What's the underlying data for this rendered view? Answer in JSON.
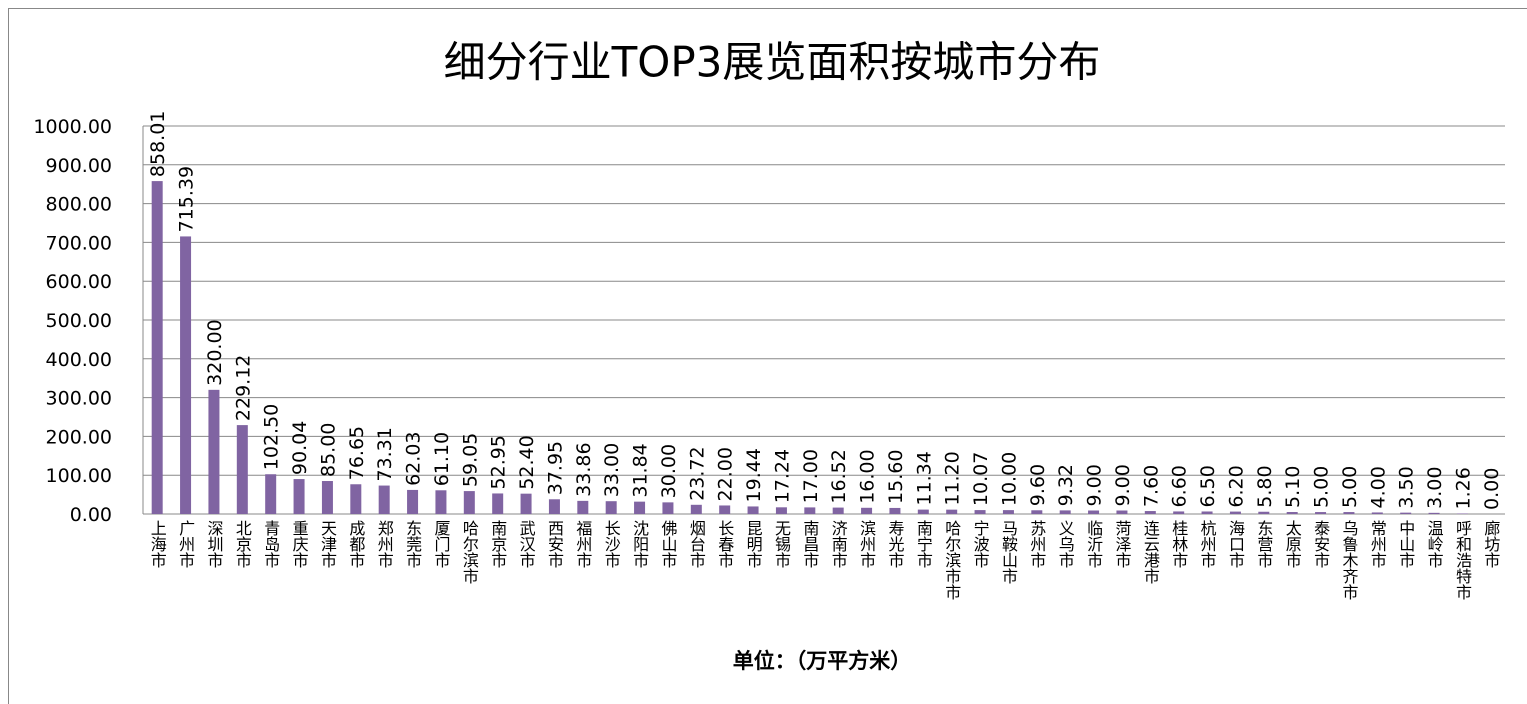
{
  "chart_data": {
    "type": "bar",
    "title": "细分行业TOP3展览面积按城市分布",
    "x_label": "单位：（万平方米）",
    "categories": [
      "上海市",
      "广州市",
      "深圳市",
      "北京市",
      "青岛市",
      "重庆市",
      "天津市",
      "成都市",
      "郑州市",
      "东莞市",
      "厦门市",
      "哈尔滨市",
      "南京市",
      "武汉市",
      "西安市",
      "福州市",
      "长沙市",
      "沈阳市",
      "佛山市",
      "烟台市",
      "长春市",
      "昆明市",
      "无锡市",
      "南昌市",
      "济南市",
      "滨州市",
      "寿光市",
      "南宁市",
      "哈尔滨市市",
      "宁波市",
      "马鞍山市",
      "苏州市",
      "义乌市",
      "临沂市",
      "菏泽市",
      "连云港市",
      "桂林市",
      "杭州市",
      "海口市",
      "东营市",
      "太原市",
      "泰安市",
      "乌鲁木齐市",
      "常州市",
      "中山市",
      "温岭市",
      "呼和浩特市",
      "廊坊市"
    ],
    "values": [
      858.01,
      715.39,
      320.0,
      229.12,
      102.5,
      90.04,
      85.0,
      76.65,
      73.31,
      62.03,
      61.1,
      59.05,
      52.95,
      52.4,
      37.95,
      33.86,
      33.0,
      31.84,
      30.0,
      23.72,
      22.0,
      19.44,
      17.24,
      17.0,
      16.52,
      16.0,
      15.6,
      11.34,
      11.2,
      10.07,
      10.0,
      9.6,
      9.32,
      9.0,
      9.0,
      7.6,
      6.6,
      6.5,
      6.2,
      5.8,
      5.1,
      5.0,
      5.0,
      4.0,
      3.5,
      3.0,
      1.26,
      0.0
    ],
    "value_labels": [
      "858.01",
      "715.39",
      "320.00",
      "229.12",
      "102.50",
      "90.04",
      "85.00",
      "76.65",
      "73.31",
      "62.03",
      "61.10",
      "59.05",
      "52.95",
      "52.40",
      "37.95",
      "33.86",
      "33.00",
      "31.84",
      "30.00",
      "23.72",
      "22.00",
      "19.44",
      "17.24",
      "17.00",
      "16.52",
      "16.00",
      "15.60",
      "11.34",
      "11.20",
      "10.07",
      "10.00",
      "9.60",
      "9.32",
      "9.00",
      "9.00",
      "7.60",
      "6.60",
      "6.50",
      "6.20",
      "5.80",
      "5.10",
      "5.00",
      "5.00",
      "4.00",
      "3.50",
      "3.00",
      "1.26",
      "0.00"
    ],
    "color": "#8064a2",
    "ylim": [
      0,
      1000
    ],
    "yticks": [
      {
        "value": 0,
        "label": "0.00"
      },
      {
        "value": 100,
        "label": "100.00"
      },
      {
        "value": 200,
        "label": "200.00"
      },
      {
        "value": 300,
        "label": "300.00"
      },
      {
        "value": 400,
        "label": "400.00"
      },
      {
        "value": 500,
        "label": "500.00"
      },
      {
        "value": 600,
        "label": "600.00"
      },
      {
        "value": 700,
        "label": "700.00"
      },
      {
        "value": 800,
        "label": "800.00"
      },
      {
        "value": 900,
        "label": "900.00"
      },
      {
        "value": 1000,
        "label": "1000.00"
      }
    ],
    "grid": true
  }
}
